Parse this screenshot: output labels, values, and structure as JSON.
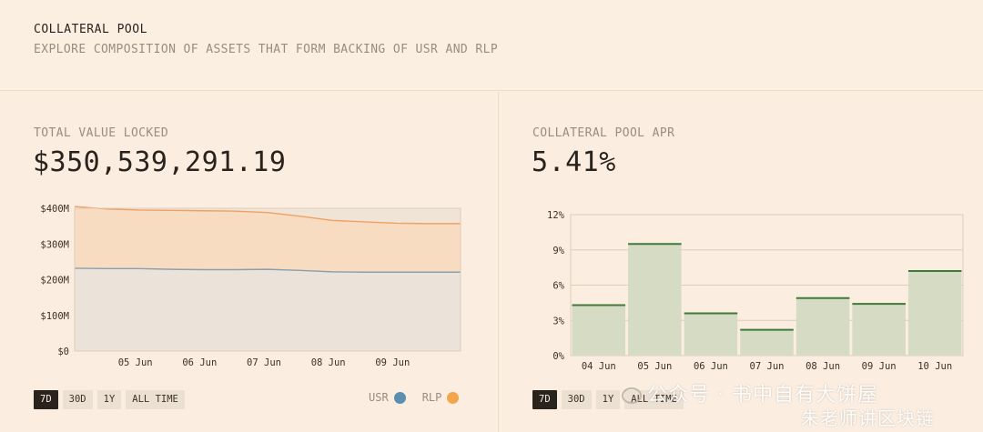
{
  "header": {
    "title": "COLLATERAL POOL",
    "subtitle": "EXPLORE COMPOSITION OF ASSETS THAT FORM BACKING OF USR AND RLP"
  },
  "tvl": {
    "label": "TOTAL VALUE LOCKED",
    "value": "$350,539,291.19",
    "range_options": [
      "7D",
      "30D",
      "1Y",
      "ALL TIME"
    ],
    "active_range": "7D",
    "legend": [
      {
        "name": "USR",
        "color": "#5a8fb0"
      },
      {
        "name": "RLP",
        "color": "#f2a54a"
      }
    ]
  },
  "apr": {
    "label": "COLLATERAL POOL APR",
    "value": "5.41%",
    "range_options": [
      "7D",
      "30D",
      "1Y",
      "ALL TIME"
    ],
    "active_range": "7D"
  },
  "watermark": {
    "line1": "公众号 · 书中自有大饼屋",
    "line2": "朱老师讲区块链"
  },
  "chart_data": [
    {
      "type": "area",
      "title": "",
      "xlabel": "",
      "ylabel": "",
      "x_ticks": [
        "05 Jun",
        "06 Jun",
        "07 Jun",
        "08 Jun",
        "09 Jun"
      ],
      "y_ticks": [
        "$0",
        "$100M",
        "$200M",
        "$300M",
        "$400M"
      ],
      "ylim": [
        0,
        400
      ],
      "x": [
        0,
        0.5,
        1,
        1.5,
        2,
        2.5,
        3,
        3.5,
        4,
        4.5,
        5,
        5.5,
        6
      ],
      "series": [
        {
          "name": "USR",
          "color": "#8aa0ae",
          "values": [
            232,
            231,
            231,
            229,
            228,
            228,
            229,
            226,
            222,
            221,
            221,
            221,
            221
          ]
        },
        {
          "name": "RLP",
          "color": "#f0a060",
          "values": [
            405,
            398,
            395,
            394,
            393,
            392,
            388,
            378,
            366,
            362,
            358,
            357,
            357
          ]
        }
      ],
      "stacked": false,
      "grid": true
    },
    {
      "type": "bar",
      "title": "",
      "xlabel": "",
      "ylabel": "",
      "categories": [
        "04 Jun",
        "05 Jun",
        "06 Jun",
        "07 Jun",
        "08 Jun",
        "09 Jun",
        "10 Jun"
      ],
      "values": [
        4.3,
        9.5,
        3.6,
        2.2,
        4.9,
        4.4,
        7.2
      ],
      "y_ticks": [
        "0%",
        "3%",
        "6%",
        "9%",
        "12%"
      ],
      "ylim": [
        0,
        12
      ],
      "grid": true
    }
  ]
}
